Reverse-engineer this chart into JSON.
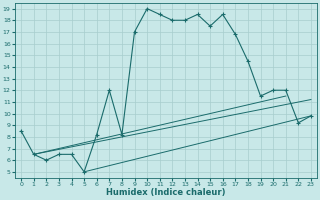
{
  "xlabel": "Humidex (Indice chaleur)",
  "background_color": "#c8e8e8",
  "grid_color": "#a8cece",
  "line_color": "#1a6b6b",
  "xlim": [
    -0.5,
    23.5
  ],
  "ylim": [
    4.5,
    19.5
  ],
  "xticks": [
    0,
    1,
    2,
    3,
    4,
    5,
    6,
    7,
    8,
    9,
    10,
    11,
    12,
    13,
    14,
    15,
    16,
    17,
    18,
    19,
    20,
    21,
    22,
    23
  ],
  "yticks": [
    5,
    6,
    7,
    8,
    9,
    10,
    11,
    12,
    13,
    14,
    15,
    16,
    17,
    18,
    19
  ],
  "main_curve_x": [
    0,
    1,
    2,
    3,
    4,
    5,
    6,
    7,
    8,
    9,
    10,
    11,
    12,
    13,
    14,
    15,
    16,
    17,
    18,
    19,
    20,
    21,
    22,
    23
  ],
  "main_curve_y": [
    8.5,
    6.5,
    6.0,
    6.5,
    6.5,
    5.0,
    8.2,
    12.0,
    8.2,
    17.0,
    19.0,
    18.5,
    18.0,
    18.0,
    18.5,
    17.5,
    18.5,
    16.8,
    14.5,
    11.5,
    12.0,
    12.0,
    9.2,
    9.8
  ],
  "line2_x": [
    1,
    21
  ],
  "line2_y": [
    6.5,
    11.5
  ],
  "line3_x": [
    1,
    23
  ],
  "line3_y": [
    6.5,
    11.2
  ],
  "line4_x": [
    5,
    23
  ],
  "line4_y": [
    5.0,
    9.8
  ]
}
